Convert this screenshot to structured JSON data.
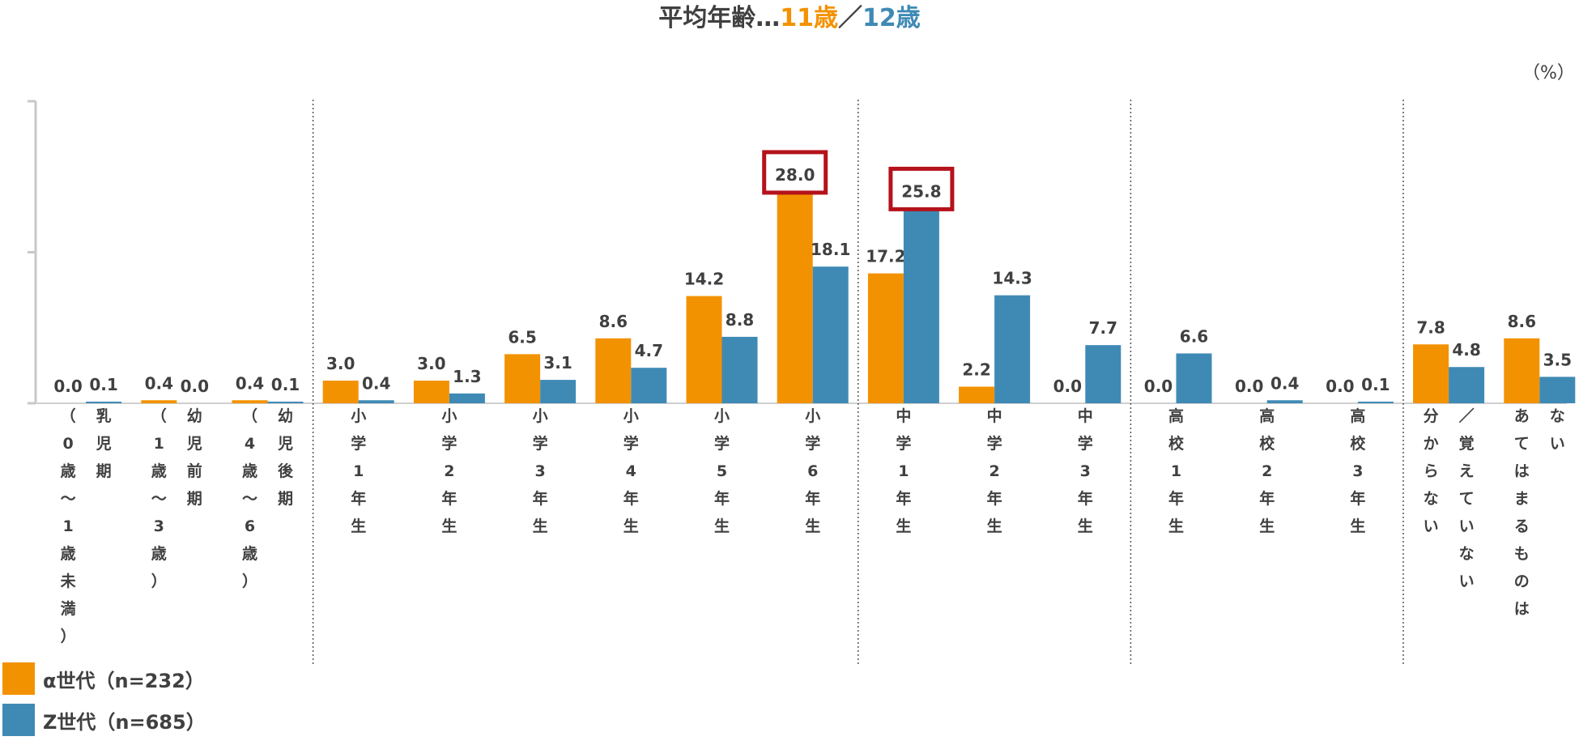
{
  "title": {
    "prefix": "平均年齢…",
    "alpha_age": "11歳",
    "separator": "／",
    "z_age": "12歳"
  },
  "unit": "（%）",
  "colors": {
    "alpha": "#f39200",
    "z": "#3f8ab5",
    "highlight": "#b5121b"
  },
  "chart_data": {
    "type": "bar",
    "title": "",
    "xlabel": "",
    "ylabel": "",
    "ylim": [
      0,
      40
    ],
    "grid": false,
    "legend_position": "bottom-left",
    "categories": [
      "（0歳〜1歳未満）乳児期",
      "（1歳〜3歳）幼児前期",
      "（4歳〜6歳）幼児後期",
      "小学1年生",
      "小学2年生",
      "小学3年生",
      "小学4年生",
      "小学5年生",
      "小学6年生",
      "中学1年生",
      "中学2年生",
      "中学3年生",
      "高校1年生",
      "高校2年生",
      "高校3年生",
      "分からない／覚えていない",
      "あてはまるものはない"
    ],
    "category_columns": [
      [
        "（0歳〜1歳未満）",
        "乳児期"
      ],
      [
        "（1歳〜3歳）",
        "幼児前期"
      ],
      [
        "（4歳〜6歳）",
        "幼児後期"
      ],
      [
        "小学1年生"
      ],
      [
        "小学2年生"
      ],
      [
        "小学3年生"
      ],
      [
        "小学4年生"
      ],
      [
        "小学5年生"
      ],
      [
        "小学6年生"
      ],
      [
        "中学1年生"
      ],
      [
        "中学2年生"
      ],
      [
        "中学3年生"
      ],
      [
        "高校1年生"
      ],
      [
        "高校2年生"
      ],
      [
        "高校3年生"
      ],
      [
        "分からない",
        "／覚えていない"
      ],
      [
        "あてはまるものは",
        "ない"
      ]
    ],
    "series": [
      {
        "name": "α世代（n=232）",
        "values": [
          0.0,
          0.4,
          0.4,
          3.0,
          3.0,
          6.5,
          8.6,
          14.2,
          28.0,
          17.2,
          2.2,
          0.0,
          0.0,
          0.0,
          0.0,
          7.8,
          8.6
        ]
      },
      {
        "name": "Z世代（n=685）",
        "values": [
          0.1,
          0.0,
          0.1,
          0.4,
          1.3,
          3.1,
          4.7,
          8.8,
          18.1,
          25.8,
          14.3,
          7.7,
          6.6,
          0.4,
          0.1,
          4.8,
          3.5
        ]
      }
    ],
    "value_labels": [
      [
        "0.0",
        "0.4",
        "0.4",
        "3.0",
        "3.0",
        "6.5",
        "8.6",
        "14.2",
        "28.0",
        "17.2",
        "2.2",
        "0.0",
        "0.0",
        "0.0",
        "0.0",
        "7.8",
        "8.6"
      ],
      [
        "0.1",
        "0.0",
        "0.1",
        "0.4",
        "1.3",
        "3.1",
        "4.7",
        "8.8",
        "18.1",
        "25.8",
        "14.3",
        "7.7",
        "6.6",
        "0.4",
        "0.1",
        "4.8",
        "3.5"
      ]
    ],
    "highlighted": [
      {
        "series": 0,
        "category": 8
      },
      {
        "series": 1,
        "category": 9
      }
    ],
    "group_dividers_after_category": [
      2,
      8,
      11,
      14
    ]
  }
}
